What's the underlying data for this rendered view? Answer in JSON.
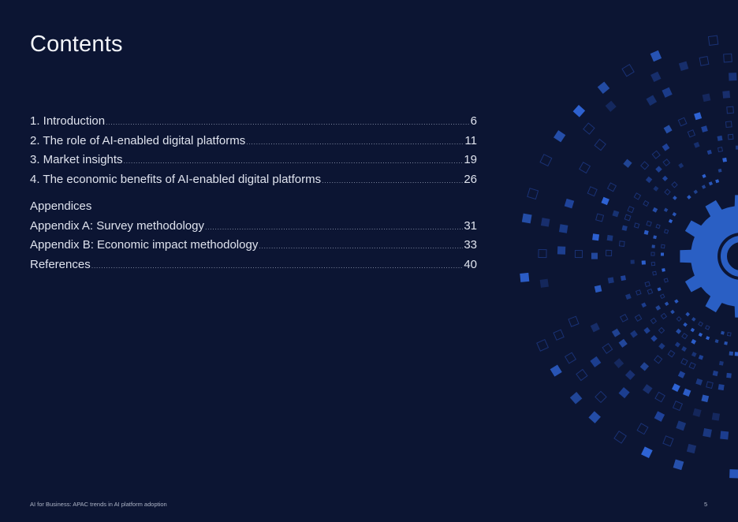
{
  "page": {
    "title": "Contents",
    "page_number": "5"
  },
  "toc": {
    "entries": [
      {
        "label": "1. Introduction",
        "page": "6"
      },
      {
        "label": "2. The role of AI-enabled digital platforms",
        "page": "11"
      },
      {
        "label": "3. Market insights",
        "page": "19"
      },
      {
        "label": "4. The economic benefits of AI-enabled digital platforms",
        "page": "26"
      }
    ],
    "appendices_heading": "Appendices",
    "appendix_entries": [
      {
        "label": "Appendix A: Survey methodology",
        "page": "31"
      },
      {
        "label": "Appendix B: Economic impact methodology",
        "page": "33"
      },
      {
        "label": "References",
        "page": "40"
      }
    ]
  },
  "footer": {
    "text": "AI for Business: APAC trends in AI platform adoption"
  },
  "decor": {
    "icon": "gear-icon",
    "colors": {
      "background": "#0c1533",
      "gear": "#2a5fc4",
      "gear_dark": "#0c1533",
      "square_bright": "#2f64d6",
      "square_mid": "#1f449c",
      "square_dim": "#1a3275"
    }
  }
}
